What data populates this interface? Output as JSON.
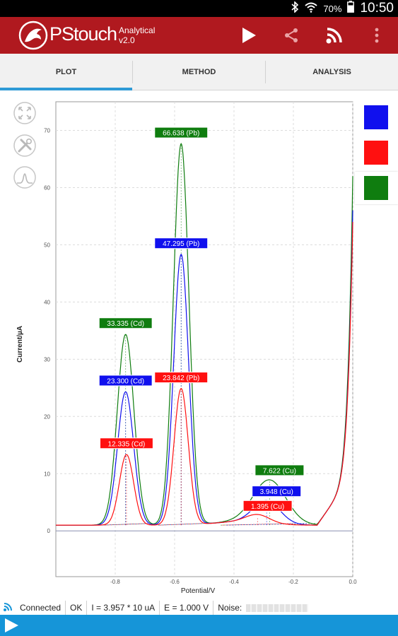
{
  "status_bar": {
    "battery": "70%",
    "time": "10:50"
  },
  "app_bar": {
    "brand": "PStouch",
    "subtitle_line1": "Analytical",
    "subtitle_line2": "v2.0",
    "icons": [
      "play-icon",
      "share-icon",
      "connection-icon",
      "overflow-menu-icon"
    ]
  },
  "tabs": [
    {
      "label": "PLOT",
      "active": true
    },
    {
      "label": "METHOD",
      "active": false
    },
    {
      "label": "ANALYSIS",
      "active": false
    }
  ],
  "tools": [
    "zoom-fit-icon",
    "tools-icon",
    "peak-icon"
  ],
  "swatches": [
    "#1010ee",
    "#ff1010",
    "#0f7d0f"
  ],
  "chart_data": {
    "type": "line",
    "xlabel": "Potential/V",
    "ylabel": "Current/µA",
    "xlim": [
      -1.0,
      0.0
    ],
    "ylim": [
      -8,
      75
    ],
    "xticks": [
      -0.8,
      -0.6,
      -0.4,
      -0.2,
      0.0
    ],
    "xtick_labels": [
      "-0.8",
      "-0.6",
      "-0.4",
      "-0.2",
      "0.0"
    ],
    "yticks": [
      0,
      10,
      20,
      30,
      40,
      50,
      60,
      70
    ],
    "ytick_labels": [
      "0",
      "10",
      "20",
      "30",
      "40",
      "50",
      "60",
      "70"
    ],
    "grid": true,
    "baseline": 1.0,
    "series": [
      {
        "color": "#0f7d0f",
        "tail_end": 62,
        "peaks": [
          {
            "element": "Cd",
            "x": -0.765,
            "height": 33.335,
            "width": 0.028,
            "label": "33.335 (Cd)"
          },
          {
            "element": "Pb",
            "x": -0.578,
            "height": 66.638,
            "width": 0.026,
            "label": "66.638 (Pb)"
          },
          {
            "element": "Cu",
            "x": -0.28,
            "height": 7.622,
            "width": 0.055,
            "label": "7.622 (Cu)"
          }
        ]
      },
      {
        "color": "#1010ee",
        "tail_end": 56,
        "peaks": [
          {
            "element": "Cd",
            "x": -0.765,
            "height": 23.3,
            "width": 0.027,
            "label": "23.300 (Cd)"
          },
          {
            "element": "Pb",
            "x": -0.578,
            "height": 47.295,
            "width": 0.025,
            "label": "47.295 (Pb)"
          },
          {
            "element": "Cu",
            "x": -0.29,
            "height": 3.948,
            "width": 0.045,
            "label": "3.948 (Cu)"
          }
        ]
      },
      {
        "color": "#ff1010",
        "tail_end": 54,
        "peaks": [
          {
            "element": "Cd",
            "x": -0.762,
            "height": 12.335,
            "width": 0.024,
            "label": "12.335 (Cd)"
          },
          {
            "element": "Pb",
            "x": -0.578,
            "height": 23.842,
            "width": 0.024,
            "label": "23.842 (Pb)"
          },
          {
            "element": "Cu",
            "x": -0.32,
            "height": 1.395,
            "width": 0.04,
            "label": "1.395 (Cu)"
          }
        ]
      }
    ]
  },
  "status_line": {
    "connection": "Connected",
    "state": "OK",
    "current": "I = 3.957 * 10 uA",
    "potential": "E = 1.000 V",
    "noise_label": "Noise:"
  }
}
